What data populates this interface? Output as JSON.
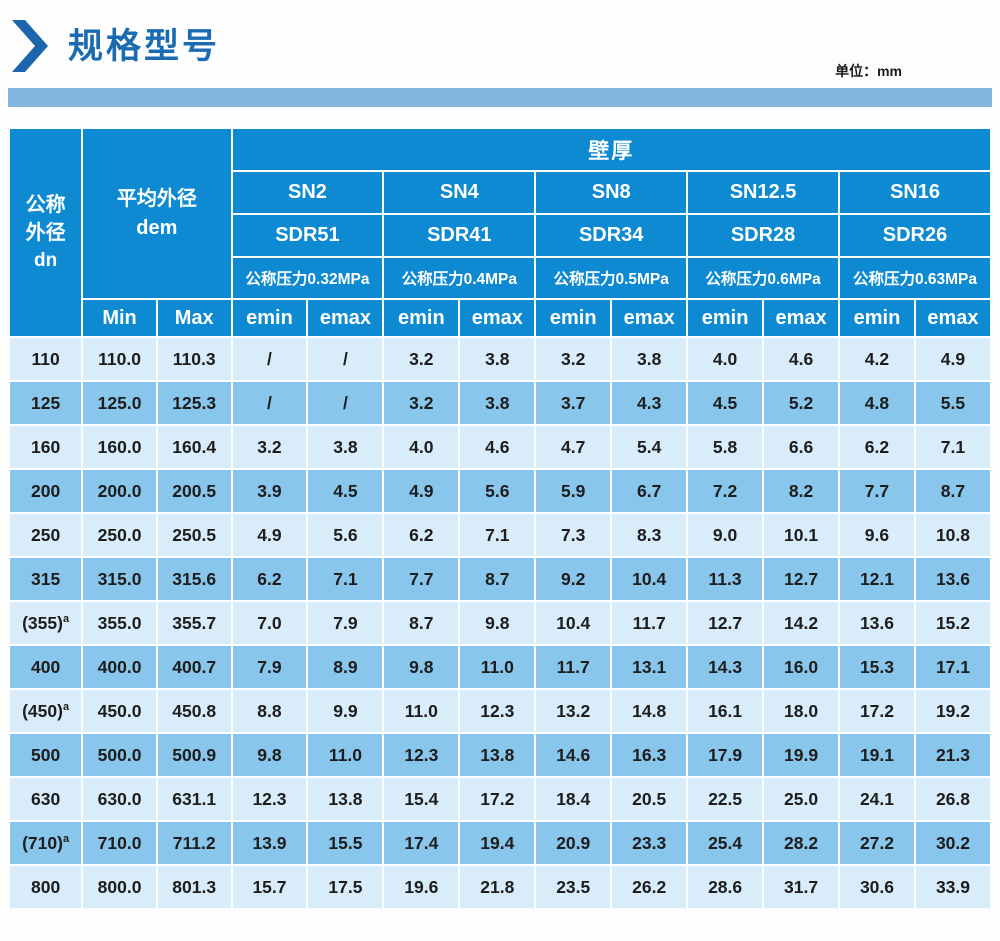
{
  "page": {
    "title": "规格型号",
    "unit_label": "单位：mm"
  },
  "colors": {
    "title_blue": "#1b6bb2",
    "accent_bar_blue": "#84b5de",
    "header_blue": "#0e8ad2",
    "row_light": "#d9ecf9",
    "row_dark": "#88c6ec",
    "body_text": "#1d1d1d"
  },
  "icons": {
    "title_chevron": "chevron-right-icon"
  },
  "table": {
    "corner": {
      "line1": "公称",
      "line2": "外径",
      "line3": "dn"
    },
    "dem": {
      "line1": "平均外径",
      "line2": "dem"
    },
    "wall_thickness": "壁厚",
    "min": "Min",
    "max": "Max",
    "emin": "emin",
    "emax": "emax",
    "groups": [
      {
        "sn": "SN2",
        "sdr": "SDR51",
        "pressure": "公称压力0.32MPa"
      },
      {
        "sn": "SN4",
        "sdr": "SDR41",
        "pressure": "公称压力0.4MPa"
      },
      {
        "sn": "SN8",
        "sdr": "SDR34",
        "pressure": "公称压力0.5MPa"
      },
      {
        "sn": "SN12.5",
        "sdr": "SDR28",
        "pressure": "公称压力0.6MPa"
      },
      {
        "sn": "SN16",
        "sdr": "SDR26",
        "pressure": "公称压力0.63MPa"
      }
    ],
    "rows": [
      {
        "dn": "110",
        "values": [
          "110.0",
          "110.3",
          "/",
          "/",
          "3.2",
          "3.8",
          "3.2",
          "3.8",
          "4.0",
          "4.6",
          "4.2",
          "4.9"
        ]
      },
      {
        "dn": "125",
        "values": [
          "125.0",
          "125.3",
          "/",
          "/",
          "3.2",
          "3.8",
          "3.7",
          "4.3",
          "4.5",
          "5.2",
          "4.8",
          "5.5"
        ]
      },
      {
        "dn": "160",
        "values": [
          "160.0",
          "160.4",
          "3.2",
          "3.8",
          "4.0",
          "4.6",
          "4.7",
          "5.4",
          "5.8",
          "6.6",
          "6.2",
          "7.1"
        ]
      },
      {
        "dn": "200",
        "values": [
          "200.0",
          "200.5",
          "3.9",
          "4.5",
          "4.9",
          "5.6",
          "5.9",
          "6.7",
          "7.2",
          "8.2",
          "7.7",
          "8.7"
        ]
      },
      {
        "dn": "250",
        "values": [
          "250.0",
          "250.5",
          "4.9",
          "5.6",
          "6.2",
          "7.1",
          "7.3",
          "8.3",
          "9.0",
          "10.1",
          "9.6",
          "10.8"
        ]
      },
      {
        "dn": "315",
        "values": [
          "315.0",
          "315.6",
          "6.2",
          "7.1",
          "7.7",
          "8.7",
          "9.2",
          "10.4",
          "11.3",
          "12.7",
          "12.1",
          "13.6"
        ]
      },
      {
        "dn": "(355)",
        "dn_sup": "a",
        "values": [
          "355.0",
          "355.7",
          "7.0",
          "7.9",
          "8.7",
          "9.8",
          "10.4",
          "11.7",
          "12.7",
          "14.2",
          "13.6",
          "15.2"
        ]
      },
      {
        "dn": "400",
        "values": [
          "400.0",
          "400.7",
          "7.9",
          "8.9",
          "9.8",
          "11.0",
          "11.7",
          "13.1",
          "14.3",
          "16.0",
          "15.3",
          "17.1"
        ]
      },
      {
        "dn": "(450)",
        "dn_sup": "a",
        "values": [
          "450.0",
          "450.8",
          "8.8",
          "9.9",
          "11.0",
          "12.3",
          "13.2",
          "14.8",
          "16.1",
          "18.0",
          "17.2",
          "19.2"
        ]
      },
      {
        "dn": "500",
        "values": [
          "500.0",
          "500.9",
          "9.8",
          "11.0",
          "12.3",
          "13.8",
          "14.6",
          "16.3",
          "17.9",
          "19.9",
          "19.1",
          "21.3"
        ]
      },
      {
        "dn": "630",
        "values": [
          "630.0",
          "631.1",
          "12.3",
          "13.8",
          "15.4",
          "17.2",
          "18.4",
          "20.5",
          "22.5",
          "25.0",
          "24.1",
          "26.8"
        ]
      },
      {
        "dn": "(710)",
        "dn_sup": "a",
        "values": [
          "710.0",
          "711.2",
          "13.9",
          "15.5",
          "17.4",
          "19.4",
          "20.9",
          "23.3",
          "25.4",
          "28.2",
          "27.2",
          "30.2"
        ]
      },
      {
        "dn": "800",
        "values": [
          "800.0",
          "801.3",
          "15.7",
          "17.5",
          "19.6",
          "21.8",
          "23.5",
          "26.2",
          "28.6",
          "31.7",
          "30.6",
          "33.9"
        ]
      }
    ]
  }
}
